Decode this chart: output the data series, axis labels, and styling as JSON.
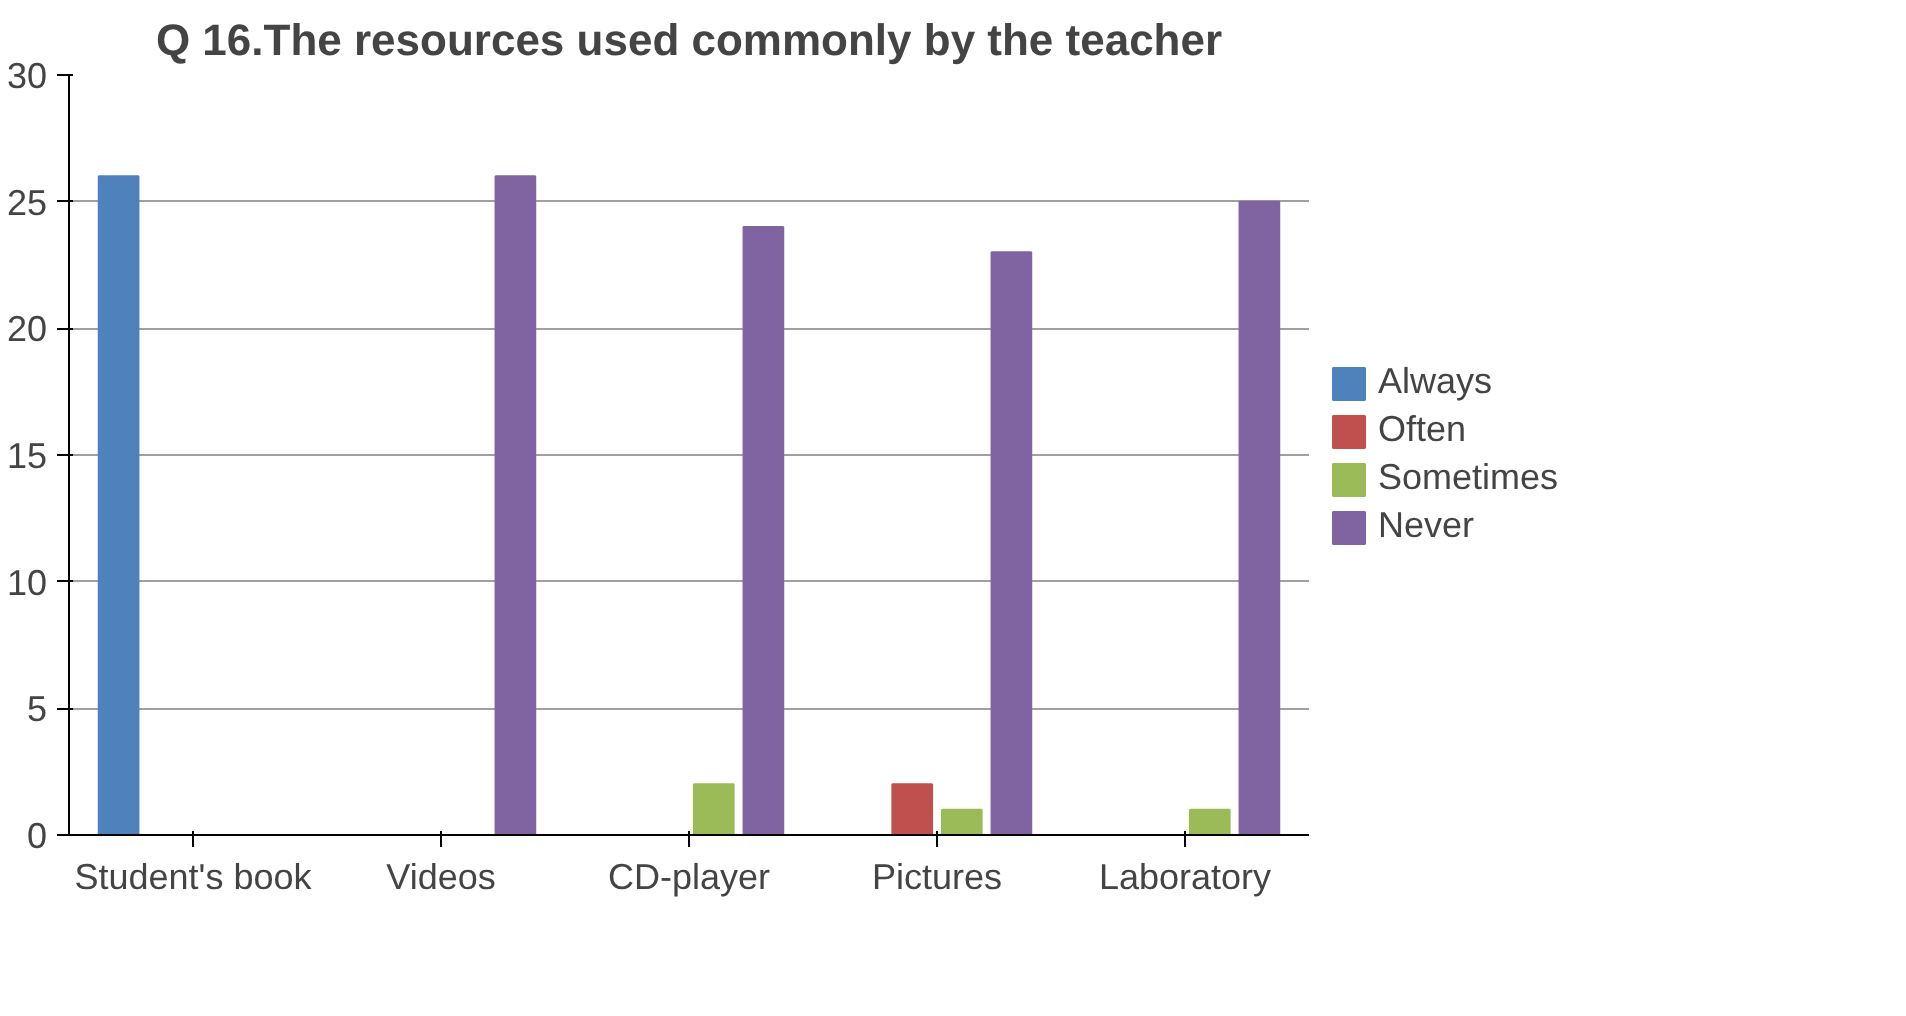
{
  "chart_data": {
    "type": "bar",
    "title": "Q 16.The resources used commonly by the teacher",
    "categories": [
      "Student's book",
      "Videos",
      "CD-player",
      "Pictures",
      "Laboratory"
    ],
    "series": [
      {
        "name": "Always",
        "color": "#4f81bd",
        "values": [
          26,
          0,
          0,
          0,
          0
        ]
      },
      {
        "name": "Often",
        "color": "#c0504d",
        "values": [
          0,
          0,
          0,
          2,
          0
        ]
      },
      {
        "name": "Sometimes",
        "color": "#9bbb59",
        "values": [
          0,
          0,
          2,
          1,
          1
        ]
      },
      {
        "name": "Never",
        "color": "#8064a2",
        "values": [
          0,
          26,
          24,
          23,
          25
        ]
      }
    ],
    "ylim": [
      0,
      30
    ],
    "yticks": [
      0,
      5,
      10,
      15,
      20,
      25,
      30
    ],
    "grid": "y",
    "legend": "right"
  }
}
